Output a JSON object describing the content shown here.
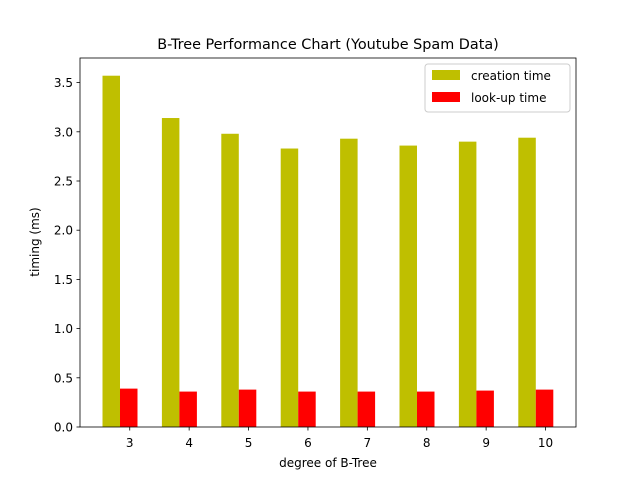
{
  "chart_data": {
    "type": "bar",
    "title": "B-Tree Performance Chart (Youtube Spam Data)",
    "xlabel": "degree of B-Tree",
    "ylabel": "timing (ms)",
    "categories": [
      "3",
      "4",
      "5",
      "6",
      "7",
      "8",
      "9",
      "10"
    ],
    "series": [
      {
        "name": "creation time",
        "color": "#bfbf00",
        "values": [
          3.57,
          3.14,
          2.98,
          2.83,
          2.93,
          2.86,
          2.9,
          2.94
        ]
      },
      {
        "name": "look-up time",
        "color": "#ff0000",
        "values": [
          0.39,
          0.36,
          0.38,
          0.36,
          0.36,
          0.36,
          0.37,
          0.38
        ]
      }
    ],
    "ylim": [
      0,
      3.75
    ],
    "yticks": [
      "0.0",
      "0.5",
      "1.0",
      "1.5",
      "2.0",
      "2.5",
      "3.0",
      "3.5"
    ],
    "grid": false,
    "legend_position": "top-right"
  }
}
